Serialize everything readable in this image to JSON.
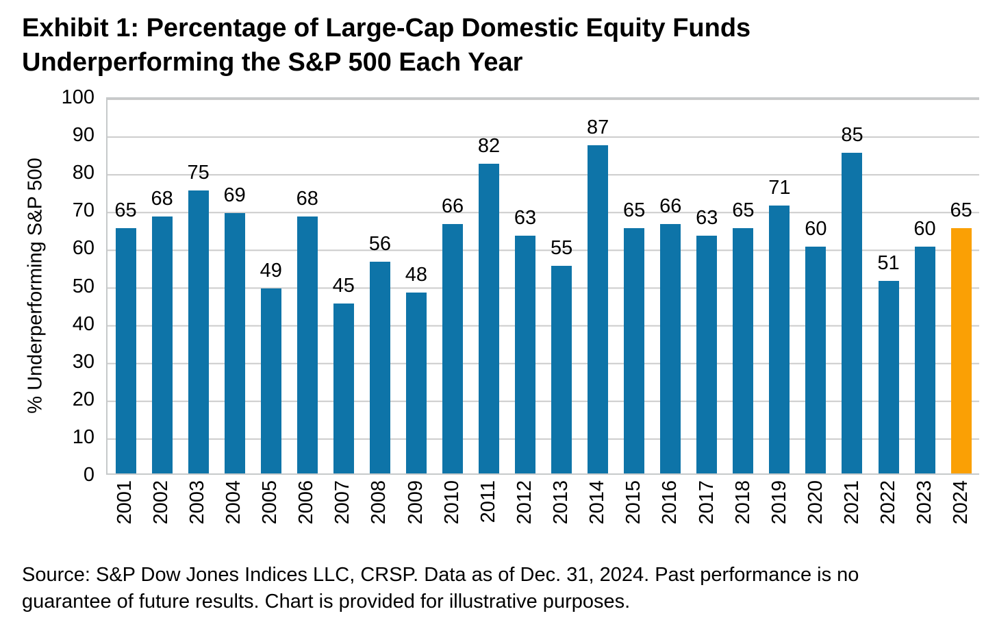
{
  "title": {
    "line1": "Exhibit 1: Percentage of Large-Cap Domestic Equity Funds",
    "line2": "Underperforming the S&P 500 Each Year"
  },
  "source": {
    "line1": "Source: S&P Dow Jones Indices LLC, CRSP.  Data as of Dec. 31, 2024.  Past performance is no",
    "line2": "guarantee of future results.  Chart is provided for illustrative purposes."
  },
  "chart_data": {
    "type": "bar",
    "title": "Exhibit 1: Percentage of Large-Cap Domestic Equity Funds Underperforming the S&P 500 Each Year",
    "xlabel": "",
    "ylabel": "% Underperforming S&P 500",
    "ylim": [
      0,
      100
    ],
    "ytick_step": 10,
    "yticks": [
      0,
      10,
      20,
      30,
      40,
      50,
      60,
      70,
      80,
      90,
      100
    ],
    "grid": true,
    "data_labels": true,
    "categories": [
      "2001",
      "2002",
      "2003",
      "2004",
      "2005",
      "2006",
      "2007",
      "2008",
      "2009",
      "2010",
      "2011",
      "2012",
      "2013",
      "2014",
      "2015",
      "2016",
      "2017",
      "2018",
      "2019",
      "2020",
      "2021",
      "2022",
      "2023",
      "2024"
    ],
    "values": [
      65,
      68,
      75,
      69,
      49,
      68,
      45,
      56,
      48,
      66,
      82,
      63,
      55,
      87,
      65,
      66,
      63,
      65,
      71,
      60,
      85,
      51,
      60,
      65
    ],
    "highlight_category": "2024",
    "highlight_index": 23,
    "colors": {
      "bar_default": "#0E74A8",
      "bar_highlight": "#FAA005",
      "gridline": "#CBCBCB",
      "axis_border": "#C6C9CA",
      "text": "#000000",
      "background": "#FFFFFF"
    }
  }
}
